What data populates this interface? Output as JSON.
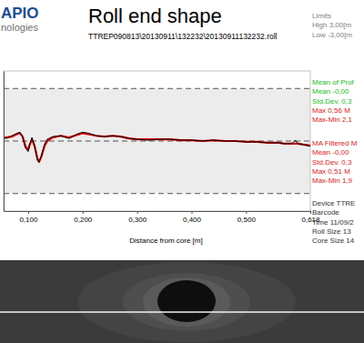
{
  "chart_data": {
    "type": "line",
    "title": "Roll end shape",
    "subtitle": "TTREP090813\\20130911\\132232\\20130911132232.roll",
    "x_label": "Distance from core [m]",
    "x": [
      0.055,
      0.06,
      0.07,
      0.08,
      0.085,
      0.09,
      0.095,
      0.1,
      0.103,
      0.107,
      0.112,
      0.117,
      0.12,
      0.124,
      0.13,
      0.135,
      0.145,
      0.16,
      0.175,
      0.19,
      0.2,
      0.21,
      0.225,
      0.24,
      0.255,
      0.27,
      0.285,
      0.3,
      0.32,
      0.34,
      0.36,
      0.38,
      0.4,
      0.42,
      0.44,
      0.46,
      0.48,
      0.5,
      0.52,
      0.54,
      0.56,
      0.57,
      0.585,
      0.59,
      0.595,
      0.605,
      0.618
    ],
    "series": [
      {
        "color": "#e00000",
        "values": [
          0.2,
          0.2,
          0.25,
          0.4,
          0.45,
          0.25,
          -0.3,
          -0.5,
          -0.2,
          0.1,
          -0.3,
          -1.0,
          -1.2,
          -0.9,
          -0.3,
          0,
          0.2,
          0.3,
          0.2,
          0.35,
          0.45,
          0.4,
          0.3,
          0.25,
          0.3,
          0.25,
          0.15,
          0.1,
          0.1,
          0.1,
          0.1,
          0.05,
          0.05,
          0,
          0.05,
          0,
          0,
          -0.05,
          -0.05,
          -0.1,
          -0.1,
          -0.15,
          -0.15,
          -0.15,
          -0.15,
          -0.2,
          -0.25
        ]
      },
      {
        "color": "#000000",
        "values": [
          0.2,
          0.15,
          0.3,
          0.45,
          0.5,
          0.2,
          -0.4,
          -0.6,
          -0.2,
          0.2,
          -0.3,
          -1.1,
          -1.2,
          -0.9,
          -0.2,
          0.1,
          0.25,
          0.3,
          0.15,
          0.4,
          0.5,
          0.45,
          0.3,
          0.25,
          0.3,
          0.25,
          0.15,
          0.1,
          0.05,
          0.1,
          0.1,
          0.05,
          0.05,
          0,
          0.05,
          0,
          0,
          -0.05,
          -0.05,
          -0.1,
          -0.1,
          -0.15,
          -0.15,
          0.05,
          -0.15,
          -0.2,
          -0.3
        ]
      }
    ],
    "xlim": [
      0.055,
      0.618
    ],
    "ylim": [
      -4,
      4
    ],
    "xticks": [
      {
        "value": 0.1,
        "label": "0,100"
      },
      {
        "value": 0.2,
        "label": "0,200"
      },
      {
        "value": 0.3,
        "label": "0,300"
      },
      {
        "value": 0.4,
        "label": "0,400"
      },
      {
        "value": 0.5,
        "label": "0,500"
      },
      {
        "value": 0.618,
        "label": "0,618"
      }
    ],
    "yticks": [
      -3,
      0,
      3
    ],
    "grid": true,
    "tick_labels": "x"
  },
  "logo": [
    "APIO",
    "nologies"
  ],
  "panel": [
    {
      "lines": [
        {
          "text": "Limits",
          "color": "#808080"
        },
        {
          "text": "High 3,00[m",
          "color": "#808080"
        },
        {
          "text": "Low -3,00[m",
          "color": "#808080"
        }
      ]
    },
    {
      "lines": [
        {
          "text": "Mean of Prof",
          "color": "#22c022"
        },
        {
          "text": "Mean -0,00",
          "color": "#22c022"
        },
        {
          "text": "Std.Dev. 0,3",
          "color": "#22c022"
        },
        {
          "text": "Max 0,56 M",
          "color": "#e02020"
        },
        {
          "text": "Max-Min 2,1",
          "color": "#e02020"
        }
      ]
    },
    {
      "lines": [
        {
          "text": "MA Filtered M",
          "color": "#e02020"
        },
        {
          "text": "Mean -0,00",
          "color": "#e02020"
        },
        {
          "text": "Std.Dev. 0,3",
          "color": "#e02020"
        },
        {
          "text": "Max 0,51 M",
          "color": "#e02020"
        },
        {
          "text": "Max-Min 1,9",
          "color": "#e02020"
        }
      ]
    },
    {
      "lines": [
        {
          "text": "Device TTRE",
          "color": "#333333"
        },
        {
          "text": "Barcode",
          "color": "#333333"
        },
        {
          "text": "Time 11/09/2",
          "color": "#333333"
        },
        {
          "text": "Roll Size 13",
          "color": "#333333"
        },
        {
          "text": "Core Size 14",
          "color": "#333333"
        }
      ]
    }
  ]
}
